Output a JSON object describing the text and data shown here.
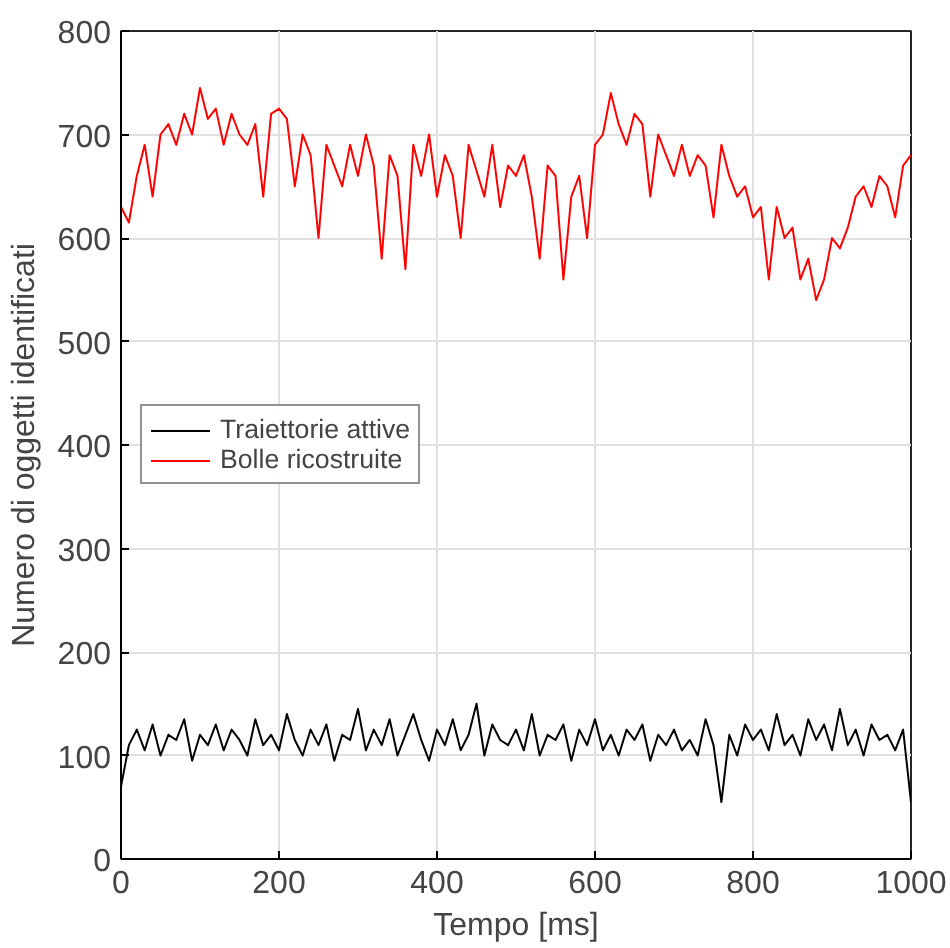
{
  "chart_data": {
    "type": "line",
    "xlabel": "Tempo [ms]",
    "ylabel": "Numero di oggetti identificati",
    "x": [
      0,
      10,
      20,
      30,
      40,
      50,
      60,
      70,
      80,
      90,
      100,
      110,
      120,
      130,
      140,
      150,
      160,
      170,
      180,
      190,
      200,
      210,
      220,
      230,
      240,
      250,
      260,
      270,
      280,
      290,
      300,
      310,
      320,
      330,
      340,
      350,
      360,
      370,
      380,
      390,
      400,
      410,
      420,
      430,
      440,
      450,
      460,
      470,
      480,
      490,
      500,
      510,
      520,
      530,
      540,
      550,
      560,
      570,
      580,
      590,
      600,
      610,
      620,
      630,
      640,
      650,
      660,
      670,
      680,
      690,
      700,
      710,
      720,
      730,
      740,
      750,
      760,
      770,
      780,
      790,
      800,
      810,
      820,
      830,
      840,
      850,
      860,
      870,
      880,
      890,
      900,
      910,
      920,
      930,
      940,
      950,
      960,
      970,
      980,
      990,
      1000
    ],
    "series": [
      {
        "name": "Traiettorie attive",
        "color": "#000000",
        "values": [
          70,
          110,
          125,
          105,
          130,
          100,
          120,
          115,
          135,
          95,
          120,
          110,
          130,
          105,
          125,
          115,
          100,
          135,
          110,
          120,
          105,
          140,
          115,
          100,
          125,
          110,
          130,
          95,
          120,
          115,
          145,
          105,
          125,
          110,
          135,
          100,
          120,
          140,
          115,
          95,
          125,
          110,
          135,
          105,
          120,
          150,
          100,
          130,
          115,
          110,
          125,
          105,
          140,
          100,
          120,
          115,
          130,
          95,
          125,
          110,
          135,
          105,
          120,
          100,
          125,
          115,
          130,
          95,
          120,
          110,
          125,
          105,
          115,
          100,
          135,
          110,
          55,
          120,
          100,
          130,
          115,
          125,
          105,
          140,
          110,
          120,
          100,
          135,
          115,
          130,
          105,
          145,
          110,
          125,
          100,
          130,
          115,
          120,
          105,
          125,
          55
        ]
      },
      {
        "name": "Bolle ricostruite",
        "color": "#ff0000",
        "values": [
          630,
          615,
          660,
          690,
          640,
          700,
          710,
          690,
          720,
          700,
          745,
          715,
          725,
          690,
          720,
          700,
          690,
          710,
          640,
          720,
          725,
          715,
          650,
          700,
          680,
          600,
          690,
          670,
          650,
          690,
          660,
          700,
          670,
          580,
          680,
          660,
          570,
          690,
          660,
          700,
          640,
          680,
          660,
          600,
          690,
          665,
          640,
          690,
          630,
          670,
          660,
          680,
          640,
          580,
          670,
          660,
          560,
          640,
          660,
          600,
          690,
          700,
          740,
          710,
          690,
          720,
          710,
          640,
          700,
          680,
          660,
          690,
          660,
          680,
          670,
          620,
          690,
          660,
          640,
          650,
          620,
          630,
          560,
          630,
          600,
          610,
          560,
          580,
          540,
          560,
          600,
          590,
          610,
          640,
          650,
          630,
          660,
          650,
          620,
          670,
          680
        ]
      }
    ],
    "xlim": [
      0,
      1000
    ],
    "ylim": [
      0,
      800
    ],
    "xticks": [
      0,
      200,
      400,
      600,
      800,
      1000
    ],
    "yticks": [
      0,
      100,
      200,
      300,
      400,
      500,
      600,
      700,
      800
    ],
    "grid": true,
    "legend": "left"
  }
}
